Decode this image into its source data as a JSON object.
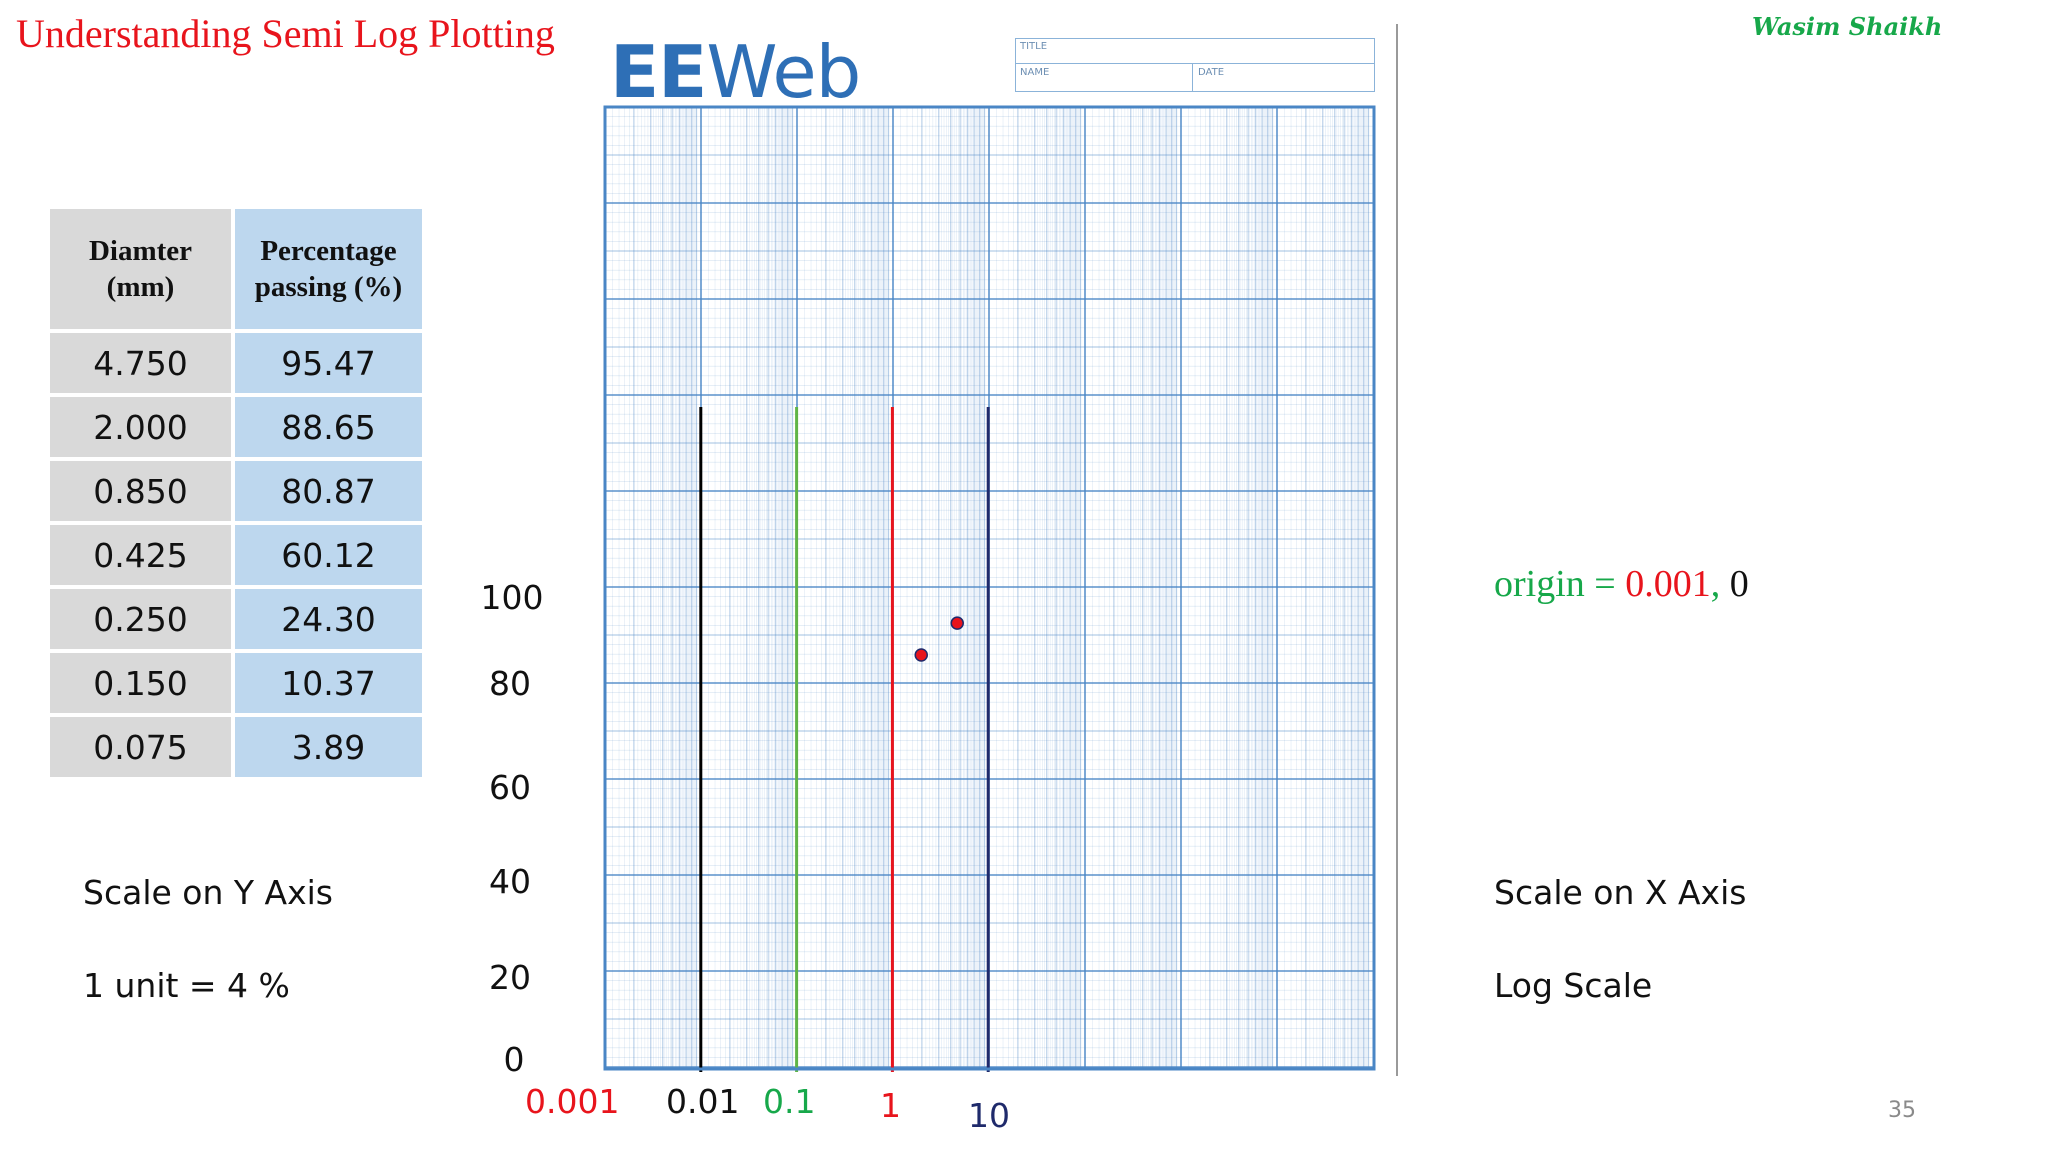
{
  "slide": {
    "title": "Understanding Semi Log Plotting",
    "author": "Wasim Shaikh",
    "page_number": "35"
  },
  "table": {
    "headers": [
      "Diamter\n(mm)",
      "Percentage\npassing (%)"
    ],
    "header_lines": [
      [
        "Diamter",
        "(mm)"
      ],
      [
        "Percentage",
        "passing (%)"
      ]
    ],
    "rows": [
      [
        "4.750",
        "95.47"
      ],
      [
        "2.000",
        "88.65"
      ],
      [
        "0.850",
        "80.87"
      ],
      [
        "0.425",
        "60.12"
      ],
      [
        "0.250",
        "24.30"
      ],
      [
        "0.150",
        "10.37"
      ],
      [
        "0.075",
        "3.89"
      ]
    ]
  },
  "notes": {
    "y_scale_title": "Scale on  Y Axis",
    "y_scale_value": "1 unit = 4 %",
    "x_scale_title": "Scale on  X Axis",
    "x_scale_value": "Log Scale",
    "origin_label": "origin = ",
    "origin_x": "0.001",
    "origin_sep": ",",
    "origin_y": " 0"
  },
  "graph_paper": {
    "logo_bold": "EE",
    "logo_rest": "Web",
    "title_label": "TITLE",
    "name_label": "NAME",
    "date_label": "DATE"
  },
  "colors": {
    "title": "#e8141c",
    "author": "#17a84a",
    "grid": "#4a86c5",
    "line_0_01": "#000000",
    "line_0_1": "#5fb446",
    "line_1": "#e8141c",
    "line_10": "#1f2a6b",
    "point": "#e8141c"
  },
  "chart_data": {
    "type": "scatter",
    "xscale": "log",
    "y_ticks": [
      "100",
      "80",
      "60",
      "40",
      "20",
      "0"
    ],
    "y_tick_values": [
      100,
      80,
      60,
      40,
      20,
      0
    ],
    "x_ticks": [
      {
        "label": "0.001",
        "value": 0.001,
        "color": "#e8141c"
      },
      {
        "label": "0.01",
        "value": 0.01,
        "color": "#111111"
      },
      {
        "label": "0.1",
        "value": 0.1,
        "color": "#17a84a"
      },
      {
        "label": "1",
        "value": 1,
        "color": "#e8141c"
      },
      {
        "label": "10",
        "value": 10,
        "color": "#1f2a6b"
      }
    ],
    "vertical_lines": [
      {
        "x": 0.01,
        "color": "#000000"
      },
      {
        "x": 0.1,
        "color": "#5fb446"
      },
      {
        "x": 1,
        "color": "#e8141c"
      },
      {
        "x": 10,
        "color": "#1f2a6b"
      }
    ],
    "points": [
      {
        "x": 4.75,
        "y": 95.47
      },
      {
        "x": 2.0,
        "y": 88.65
      }
    ],
    "xlim": [
      0.001,
      10000
    ],
    "ylim": [
      0,
      100
    ]
  }
}
